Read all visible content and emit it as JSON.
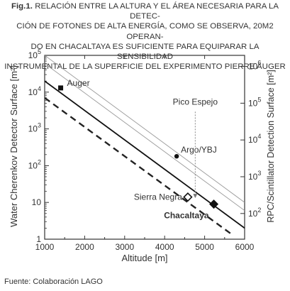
{
  "caption": {
    "prefix": "Fig.1.",
    "text": "RELACIÓN ENTRE LA ALTURA Y EL ÁREA NECESARIA PARA LA DETECCIÓN DE FOTONES DE ALTA ENERGÍA, COMO SE OBSERVA, 20M2 OPERANDO EN CHACALTAYA ES SUFICIENTE PARA EQUIPARAR LA SENSIBILIDAD INSTRUMENTAL DE LA SUPERFICIE DEL EXPERIMENTO PIERRE AUGER",
    "line1": "RELACIÓN ENTRE LA ALTURA Y EL ÁREA NECESARIA PARA LA DETEC-",
    "line2": "CIÓN DE FOTONES DE ALTA ENERGÍA, COMO SE OBSERVA, 20M2 OPERAN-",
    "line3": "DO EN CHACALTAYA ES SUFICIENTE PARA EQUIPARAR LA SENSIBILIDAD",
    "line4": "INSTRUMENTAL DE LA SUPERFICIE DEL EXPERIMENTO PIERRE AUGER"
  },
  "source": "Fuente: Colaboración LAGO",
  "chart_data": {
    "type": "line",
    "xlabel": "Altitude [m]",
    "ylabel_left": "Water Cherenkov Detector Surface [m²]",
    "ylabel_right": "RPC/Scintillator Detection Surface [m²]",
    "xlim": [
      1000,
      6000
    ],
    "ylim_left": [
      1,
      100000
    ],
    "ylim_right": [
      20,
      2000000
    ],
    "yscale": "log",
    "x_ticks": [
      "1000",
      "2000",
      "3000",
      "4000",
      "5000",
      "6000"
    ],
    "y_left_ticks": [
      {
        "base": "1",
        "exp": ""
      },
      {
        "base": "10",
        "exp": ""
      },
      {
        "base": "10",
        "exp": "2"
      },
      {
        "base": "10",
        "exp": "3"
      },
      {
        "base": "10",
        "exp": "4"
      },
      {
        "base": "10",
        "exp": "5"
      }
    ],
    "y_right_ticks": [
      {
        "base": "10",
        "exp": "2"
      },
      {
        "base": "10",
        "exp": "3"
      },
      {
        "base": "10",
        "exp": "4"
      },
      {
        "base": "10",
        "exp": "5"
      },
      {
        "base": "10",
        "exp": "6"
      }
    ],
    "series": [
      {
        "style": "solid-dark",
        "x": [
          1000,
          6000
        ],
        "y": [
          20000,
          2.0
        ],
        "color": "#111111"
      },
      {
        "style": "dashed-dark",
        "x": [
          1000,
          5700
        ],
        "y": [
          7000,
          1.3
        ],
        "color": "#222222"
      },
      {
        "style": "solid-light",
        "x": [
          1000,
          6000
        ],
        "y": [
          60000,
          6.0
        ],
        "color": "#999999"
      },
      {
        "style": "solid-light",
        "x": [
          1000,
          6000
        ],
        "y": [
          100000,
          10.0
        ],
        "color": "#999999"
      }
    ],
    "points": [
      {
        "label": "Auger",
        "x": 1400,
        "y": 13000,
        "marker": "square"
      },
      {
        "label": "Argo/YBJ",
        "x": 4300,
        "y": 180,
        "marker": "circle"
      },
      {
        "label": "Sierra Negra",
        "x": 4580,
        "y": 14,
        "marker": "diamond-open"
      },
      {
        "label": "Chacaltaya",
        "x": 5230,
        "y": 9,
        "marker": "diamond"
      }
    ],
    "annotations": [
      {
        "label": "Pico Espejo",
        "x": 4765,
        "y_from": 5000,
        "y_to": 15,
        "type": "dotted-arrow"
      }
    ],
    "grid": false,
    "legend": "none"
  }
}
